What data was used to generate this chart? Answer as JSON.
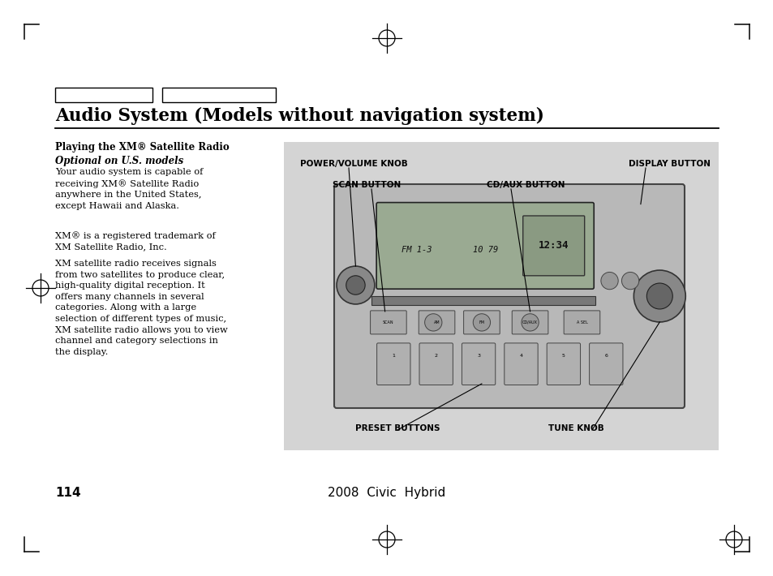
{
  "page_bg": "#ffffff",
  "title": "Audio System (Models without navigation system)",
  "page_number": "114",
  "footer_center": "2008  Civic  Hybrid",
  "body_heading": "Playing the XM® Satellite Radio",
  "body_subheading": "Optional on U.S. models",
  "para1": "Your audio system is capable of\nreceiving XM® Satellite Radio\nanywhere in the United States,\nexcept Hawaii and Alaska.",
  "para2": "XM® is a registered trademark of\nXM Satellite Radio, Inc.",
  "para3": "XM satellite radio receives signals\nfrom two satellites to produce clear,\nhigh-quality digital reception. It\noffers many channels in several\ncategories. Along with a large\nselection of different types of music,\nXM satellite radio allows you to view\nchannel and category selections in\nthe display.",
  "diagram_bg": "#d4d4d4",
  "label_power": "POWER/VOLUME KNOB",
  "label_display": "DISPLAY BUTTON",
  "label_scan": "SCAN BUTTON",
  "label_cdaux": "CD/AUX BUTTON",
  "label_preset": "PRESET BUTTONS",
  "label_tune": "TUNE KNOB"
}
